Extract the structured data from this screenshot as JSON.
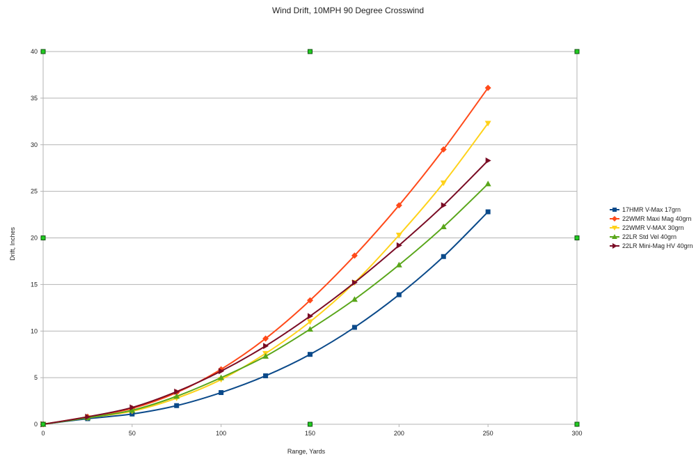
{
  "chart_data": {
    "type": "line",
    "title": "Wind Drift, 10MPH 90 Degree Crosswind",
    "xlabel": "Range, Yards",
    "ylabel": "Drift, Inches",
    "xlim": [
      0,
      300
    ],
    "ylim": [
      0,
      40
    ],
    "xticks": [
      0,
      50,
      100,
      150,
      200,
      250,
      300
    ],
    "yticks": [
      0,
      5,
      10,
      15,
      20,
      25,
      30,
      35,
      40
    ],
    "grid": "horizontal",
    "legend_position": "right",
    "x": [
      0,
      25,
      50,
      75,
      100,
      125,
      150,
      175,
      200,
      225,
      250
    ],
    "series": [
      {
        "name": "17HMR V-Max 17grn",
        "color": "#0b4a8a",
        "marker": "square",
        "values": [
          0,
          0.6,
          1.1,
          2.0,
          3.4,
          5.2,
          7.5,
          10.4,
          13.9,
          18.0,
          22.8
        ]
      },
      {
        "name": "22WMR Maxi Mag 40grn",
        "color": "#ff4a1a",
        "marker": "diamond",
        "values": [
          0,
          0.8,
          1.7,
          3.4,
          5.9,
          9.2,
          13.3,
          18.1,
          23.5,
          29.5,
          36.1
        ]
      },
      {
        "name": "22WMR V-MAX 30grn",
        "color": "#ffd21a",
        "marker": "triangle-down",
        "values": [
          0,
          0.7,
          1.4,
          2.8,
          4.8,
          7.6,
          11.0,
          15.2,
          20.3,
          25.9,
          32.3
        ]
      },
      {
        "name": "22LR Std Vel 40grn",
        "color": "#59a61a",
        "marker": "triangle-up",
        "values": [
          0,
          0.7,
          1.5,
          3.0,
          5.0,
          7.3,
          10.2,
          13.4,
          17.1,
          21.2,
          25.8
        ]
      },
      {
        "name": "22LR Mini-Mag HV 40grn",
        "color": "#7a0c25",
        "marker": "triangle-right",
        "values": [
          0,
          0.8,
          1.8,
          3.5,
          5.7,
          8.4,
          11.6,
          15.2,
          19.2,
          23.5,
          28.3
        ]
      }
    ]
  }
}
